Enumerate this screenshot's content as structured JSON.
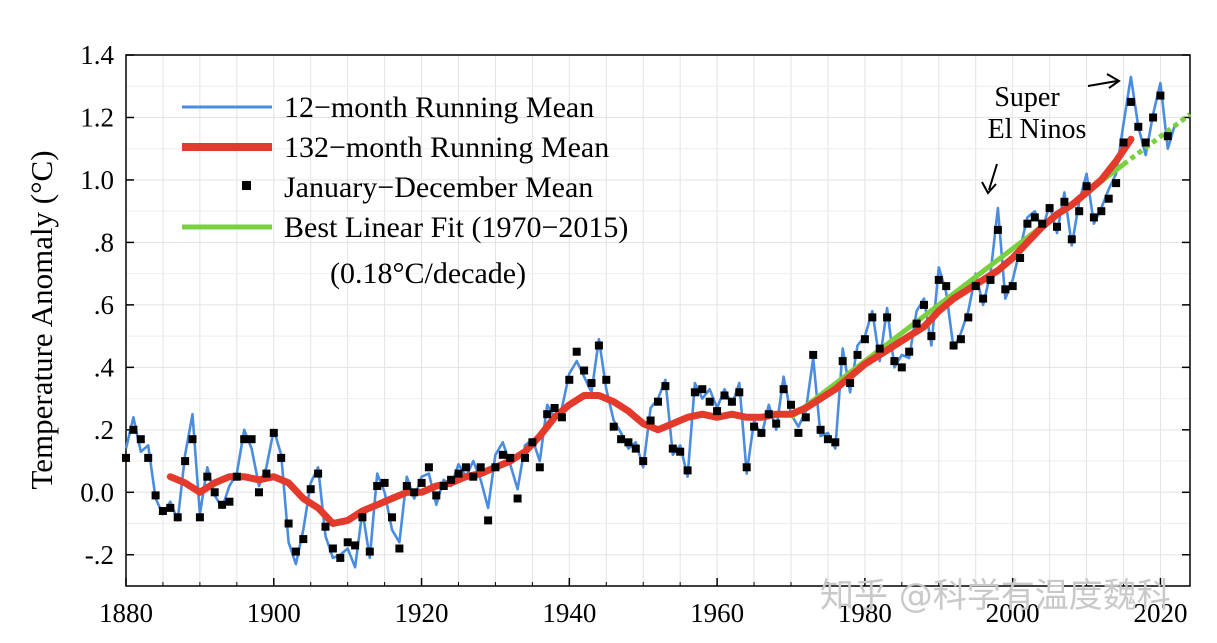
{
  "chart_data": {
    "type": "line",
    "title": "",
    "xlabel": "",
    "ylabel": "Temperature Anomaly (°C)",
    "xlim": [
      1880,
      2024
    ],
    "ylim": [
      -0.3,
      1.4
    ],
    "x_ticks": [
      1880,
      1900,
      1920,
      1940,
      1960,
      1980,
      2000,
      2020
    ],
    "y_ticks": [
      {
        "value": -0.2,
        "label": "-.2"
      },
      {
        "value": 0.0,
        "label": "0.0"
      },
      {
        "value": 0.2,
        "label": ".2"
      },
      {
        "value": 0.4,
        "label": ".4"
      },
      {
        "value": 0.6,
        "label": ".6"
      },
      {
        "value": 0.8,
        "label": ".8"
      },
      {
        "value": 1.0,
        "label": "1.0"
      },
      {
        "value": 1.2,
        "label": "1.2"
      },
      {
        "value": 1.4,
        "label": "1.4"
      }
    ],
    "grid": true,
    "legend": {
      "position": "top-left",
      "entries": [
        {
          "label": "12−month Running Mean",
          "color": "#4a8de0",
          "style": "thin-line"
        },
        {
          "label": "132−month Running Mean",
          "color": "#e43a2b",
          "style": "thick-line"
        },
        {
          "label": "January−December Mean",
          "color": "#000000",
          "style": "square-marker"
        },
        {
          "label": "Best Linear Fit (1970−2015)",
          "color": "#79d13f",
          "style": "line"
        }
      ],
      "note": "(0.18°C/decade)"
    },
    "annotations": [
      {
        "text_lines": [
          "Super",
          "El Ninos"
        ],
        "points_to_years": [
          1998,
          2016
        ]
      }
    ],
    "series": [
      {
        "name": "January−December Mean",
        "x": [
          1880,
          1881,
          1882,
          1883,
          1884,
          1885,
          1886,
          1887,
          1888,
          1889,
          1890,
          1891,
          1892,
          1893,
          1894,
          1895,
          1896,
          1897,
          1898,
          1899,
          1900,
          1901,
          1902,
          1903,
          1904,
          1905,
          1906,
          1907,
          1908,
          1909,
          1910,
          1911,
          1912,
          1913,
          1914,
          1915,
          1916,
          1917,
          1918,
          1919,
          1920,
          1921,
          1922,
          1923,
          1924,
          1925,
          1926,
          1927,
          1928,
          1929,
          1930,
          1931,
          1932,
          1933,
          1934,
          1935,
          1936,
          1937,
          1938,
          1939,
          1940,
          1941,
          1942,
          1943,
          1944,
          1945,
          1946,
          1947,
          1948,
          1949,
          1950,
          1951,
          1952,
          1953,
          1954,
          1955,
          1956,
          1957,
          1958,
          1959,
          1960,
          1961,
          1962,
          1963,
          1964,
          1965,
          1966,
          1967,
          1968,
          1969,
          1970,
          1971,
          1972,
          1973,
          1974,
          1975,
          1976,
          1977,
          1978,
          1979,
          1980,
          1981,
          1982,
          1983,
          1984,
          1985,
          1986,
          1987,
          1988,
          1989,
          1990,
          1991,
          1992,
          1993,
          1994,
          1995,
          1996,
          1997,
          1998,
          1999,
          2000,
          2001,
          2002,
          2003,
          2004,
          2005,
          2006,
          2007,
          2008,
          2009,
          2010,
          2011,
          2012,
          2013,
          2014,
          2015,
          2016,
          2017,
          2018,
          2019,
          2020,
          2021
        ],
        "values": [
          0.11,
          0.2,
          0.17,
          0.11,
          -0.01,
          -0.06,
          -0.05,
          -0.08,
          0.1,
          0.17,
          -0.08,
          0.05,
          0.0,
          -0.04,
          -0.03,
          0.05,
          0.17,
          0.17,
          0.0,
          0.06,
          0.19,
          0.11,
          -0.1,
          -0.19,
          -0.15,
          0.01,
          0.06,
          -0.11,
          -0.18,
          -0.21,
          -0.16,
          -0.17,
          -0.08,
          -0.19,
          0.02,
          0.03,
          -0.08,
          -0.18,
          0.02,
          0.0,
          0.03,
          0.08,
          -0.01,
          0.02,
          0.04,
          0.06,
          0.08,
          0.05,
          0.08,
          -0.09,
          0.08,
          0.12,
          0.11,
          -0.02,
          0.11,
          0.16,
          0.08,
          0.25,
          0.27,
          0.24,
          0.36,
          0.45,
          0.39,
          0.35,
          0.47,
          0.36,
          0.21,
          0.17,
          0.16,
          0.14,
          0.1,
          0.23,
          0.29,
          0.34,
          0.14,
          0.13,
          0.07,
          0.32,
          0.33,
          0.29,
          0.26,
          0.31,
          0.29,
          0.32,
          0.08,
          0.21,
          0.19,
          0.25,
          0.22,
          0.33,
          0.28,
          0.19,
          0.24,
          0.44,
          0.2,
          0.17,
          0.16,
          0.42,
          0.35,
          0.44,
          0.49,
          0.56,
          0.46,
          0.56,
          0.42,
          0.4,
          0.45,
          0.54,
          0.6,
          0.5,
          0.68,
          0.66,
          0.47,
          0.49,
          0.56,
          0.66,
          0.62,
          0.68,
          0.84,
          0.65,
          0.66,
          0.75,
          0.86,
          0.88,
          0.86,
          0.91,
          0.85,
          0.93,
          0.81,
          0.9,
          0.98,
          0.88,
          0.9,
          0.94,
          0.99,
          1.12,
          1.25,
          1.17,
          1.12,
          1.2,
          1.27,
          1.14
        ]
      },
      {
        "name": "12−month Running Mean",
        "x": [
          1880,
          1881,
          1882,
          1883,
          1884,
          1885,
          1886,
          1887,
          1888,
          1889,
          1890,
          1891,
          1892,
          1893,
          1894,
          1895,
          1896,
          1897,
          1898,
          1899,
          1900,
          1901,
          1902,
          1903,
          1904,
          1905,
          1906,
          1907,
          1908,
          1909,
          1910,
          1911,
          1912,
          1913,
          1914,
          1915,
          1916,
          1917,
          1918,
          1919,
          1920,
          1921,
          1922,
          1923,
          1924,
          1925,
          1926,
          1927,
          1928,
          1929,
          1930,
          1931,
          1932,
          1933,
          1934,
          1935,
          1936,
          1937,
          1938,
          1939,
          1940,
          1941,
          1942,
          1943,
          1944,
          1945,
          1946,
          1947,
          1948,
          1949,
          1950,
          1951,
          1952,
          1953,
          1954,
          1955,
          1956,
          1957,
          1958,
          1959,
          1960,
          1961,
          1962,
          1963,
          1964,
          1965,
          1966,
          1967,
          1968,
          1969,
          1970,
          1971,
          1972,
          1973,
          1974,
          1975,
          1976,
          1977,
          1978,
          1979,
          1980,
          1981,
          1982,
          1983,
          1984,
          1985,
          1986,
          1987,
          1988,
          1989,
          1990,
          1991,
          1992,
          1993,
          1994,
          1995,
          1996,
          1997,
          1998,
          1999,
          2000,
          2001,
          2002,
          2003,
          2004,
          2005,
          2006,
          2007,
          2008,
          2009,
          2010,
          2011,
          2012,
          2013,
          2014,
          2015,
          2016,
          2017,
          2018,
          2019,
          2020,
          2021,
          2022
        ],
        "values": [
          0.14,
          0.24,
          0.13,
          0.15,
          -0.02,
          -0.07,
          -0.03,
          -0.09,
          0.12,
          0.25,
          -0.07,
          0.08,
          -0.01,
          -0.05,
          0.02,
          0.06,
          0.2,
          0.14,
          0.02,
          0.08,
          0.2,
          0.12,
          -0.16,
          -0.23,
          -0.12,
          0.03,
          0.08,
          -0.14,
          -0.21,
          -0.2,
          -0.18,
          -0.24,
          -0.06,
          -0.21,
          0.06,
          0.0,
          -0.12,
          -0.16,
          0.05,
          -0.02,
          0.05,
          0.06,
          -0.04,
          0.04,
          0.02,
          0.09,
          0.05,
          0.1,
          0.04,
          -0.05,
          0.12,
          0.16,
          0.09,
          0.01,
          0.15,
          0.17,
          0.1,
          0.28,
          0.24,
          0.27,
          0.38,
          0.42,
          0.37,
          0.32,
          0.49,
          0.33,
          0.23,
          0.19,
          0.14,
          0.16,
          0.08,
          0.27,
          0.3,
          0.36,
          0.12,
          0.15,
          0.05,
          0.35,
          0.3,
          0.33,
          0.27,
          0.33,
          0.28,
          0.35,
          0.06,
          0.23,
          0.18,
          0.28,
          0.2,
          0.37,
          0.25,
          0.21,
          0.26,
          0.43,
          0.18,
          0.19,
          0.14,
          0.46,
          0.32,
          0.47,
          0.5,
          0.58,
          0.42,
          0.59,
          0.4,
          0.44,
          0.43,
          0.58,
          0.62,
          0.47,
          0.72,
          0.64,
          0.46,
          0.51,
          0.58,
          0.7,
          0.6,
          0.7,
          0.91,
          0.62,
          0.68,
          0.78,
          0.88,
          0.9,
          0.84,
          0.92,
          0.83,
          0.96,
          0.79,
          0.93,
          1.02,
          0.86,
          0.91,
          0.97,
          1.02,
          1.18,
          1.33,
          1.17,
          1.08,
          1.21,
          1.31,
          1.1,
          1.18
        ]
      },
      {
        "name": "132−month Running Mean",
        "x": [
          1886,
          1888,
          1890,
          1892,
          1894,
          1896,
          1898,
          1900,
          1902,
          1904,
          1906,
          1908,
          1910,
          1912,
          1914,
          1916,
          1918,
          1920,
          1922,
          1924,
          1926,
          1928,
          1930,
          1932,
          1934,
          1936,
          1938,
          1940,
          1942,
          1944,
          1946,
          1948,
          1950,
          1952,
          1954,
          1956,
          1958,
          1960,
          1962,
          1964,
          1966,
          1968,
          1970,
          1972,
          1974,
          1976,
          1978,
          1980,
          1982,
          1984,
          1986,
          1988,
          1990,
          1992,
          1994,
          1996,
          1998,
          2000,
          2002,
          2004,
          2006,
          2008,
          2010,
          2012,
          2014,
          2016
        ],
        "values": [
          0.05,
          0.03,
          0.0,
          0.03,
          0.05,
          0.05,
          0.04,
          0.05,
          0.03,
          -0.02,
          -0.05,
          -0.1,
          -0.09,
          -0.06,
          -0.04,
          -0.02,
          0.0,
          0.0,
          0.02,
          0.03,
          0.05,
          0.06,
          0.08,
          0.1,
          0.13,
          0.18,
          0.24,
          0.28,
          0.31,
          0.31,
          0.29,
          0.26,
          0.22,
          0.2,
          0.22,
          0.24,
          0.25,
          0.24,
          0.25,
          0.24,
          0.24,
          0.25,
          0.25,
          0.27,
          0.3,
          0.33,
          0.37,
          0.41,
          0.44,
          0.47,
          0.5,
          0.53,
          0.58,
          0.62,
          0.65,
          0.68,
          0.71,
          0.75,
          0.8,
          0.85,
          0.89,
          0.92,
          0.96,
          1.0,
          1.06,
          1.13
        ]
      },
      {
        "name": "Best Linear Fit (1970−2015)",
        "x": [
          1970,
          2015
        ],
        "values": [
          0.24,
          1.05
        ],
        "extension": {
          "x": [
            2015,
            2024
          ],
          "values": [
            1.05,
            1.21
          ],
          "dashed": true
        }
      }
    ]
  },
  "watermark": "知乎 @科学有温度魏科"
}
